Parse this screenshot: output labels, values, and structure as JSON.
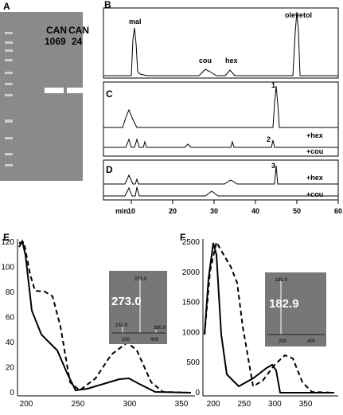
{
  "panels": {
    "A": {
      "label": "A",
      "lanes": [
        {
          "line1": "CAN",
          "line2": "1069"
        },
        {
          "line1": "CAN",
          "line2": "24"
        }
      ]
    },
    "B": {
      "label": "B",
      "peaks": [
        "mal",
        "cou",
        "hex",
        "olevetol"
      ]
    },
    "C": {
      "label": "C",
      "peaks": [
        "1",
        "2"
      ],
      "traces": [
        "+hex",
        "+cou"
      ]
    },
    "D": {
      "label": "D",
      "peaks": [
        "3"
      ],
      "traces": [
        "+hex",
        "+cou"
      ]
    },
    "axis": {
      "unit": "min",
      "ticks": [
        "10",
        "20",
        "30",
        "40",
        "50",
        "60"
      ]
    },
    "E": {
      "label": "E",
      "yticks": [
        "0",
        "20",
        "40",
        "60",
        "80",
        "100",
        "120"
      ],
      "xticks": [
        "200",
        "250",
        "300",
        "350"
      ],
      "inset": {
        "mass": "273.0",
        "peak_labels": [
          "273.0",
          "152.9",
          "380.9"
        ],
        "xticks": [
          "200",
          "400"
        ]
      }
    },
    "F": {
      "label": "F",
      "yticks": [
        "0",
        "500",
        "1000",
        "1500",
        "2000",
        "2500"
      ],
      "xticks": [
        "200",
        "250",
        "300",
        "350"
      ],
      "inset": {
        "mass": "182.9",
        "peak_labels": [
          "182.9"
        ],
        "xticks": [
          "200",
          "400"
        ]
      }
    }
  }
}
